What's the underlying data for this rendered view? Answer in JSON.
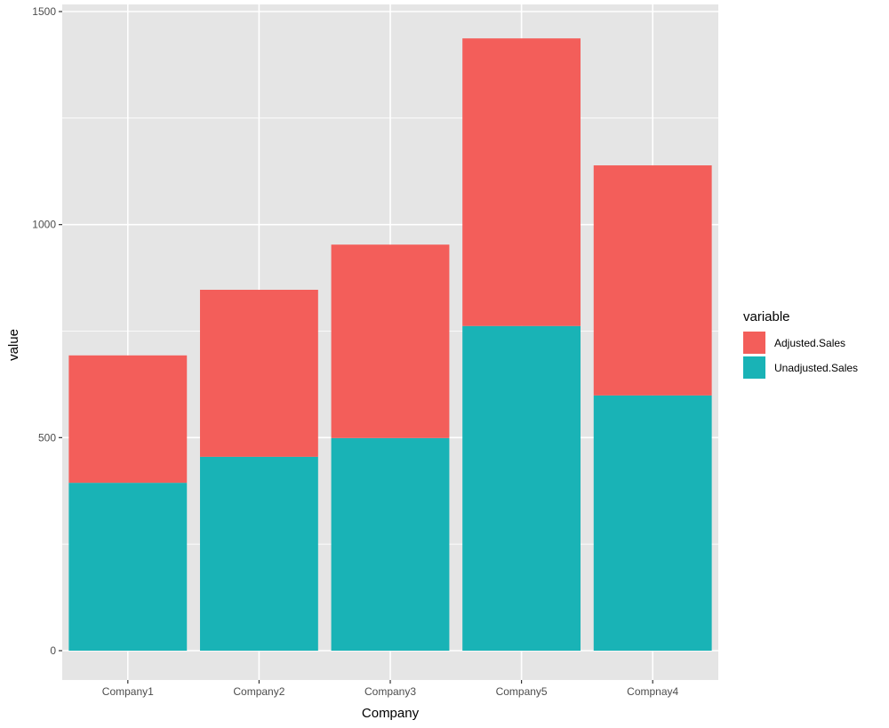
{
  "chart_data": {
    "type": "bar",
    "stacked": true,
    "title": "",
    "xlabel": "Company",
    "ylabel": "value",
    "ylim": [
      -75,
      1510
    ],
    "yticks": [
      0,
      500,
      1000,
      1500
    ],
    "categories": [
      "Company1",
      "Company2",
      "Company3",
      "Company5",
      "Compnay4"
    ],
    "series": [
      {
        "name": "Adjusted.Sales",
        "color": "#F35E5A",
        "values": [
          299,
          392,
          454,
          675,
          540
        ]
      },
      {
        "name": "Unadjusted.Sales",
        "color": "#19B3B6",
        "values": [
          394,
          455,
          499,
          762,
          599
        ]
      }
    ],
    "legend": {
      "title": "variable",
      "position": "right"
    },
    "grid": true,
    "panel_background": "#E5E5E5",
    "grid_color": "#FFFFFF"
  }
}
